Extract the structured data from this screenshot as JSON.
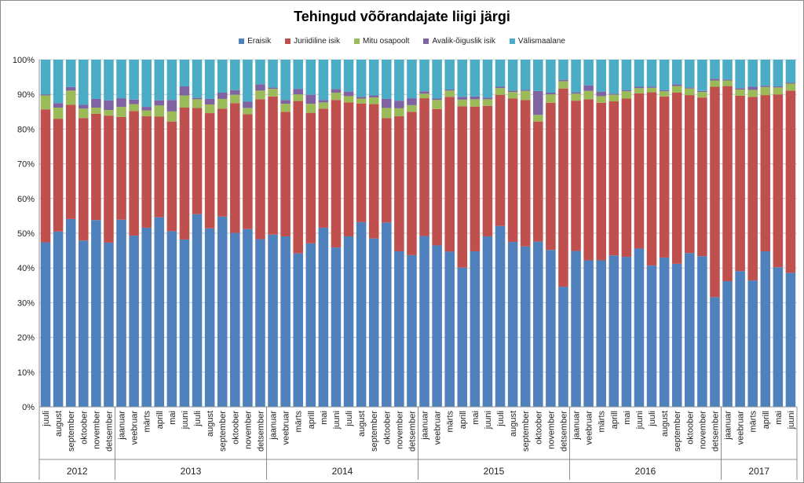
{
  "chart_data": {
    "type": "bar",
    "stacked": "100%",
    "title": "Tehingud võõrandajate liigi järgi",
    "legend_position": "top",
    "grid": true,
    "ylim": [
      0,
      100
    ],
    "y_ticks": [
      "0%",
      "10%",
      "20%",
      "30%",
      "40%",
      "50%",
      "60%",
      "70%",
      "80%",
      "90%",
      "100%"
    ],
    "colors": [
      "#4F81BD",
      "#C0504D",
      "#9BBB59",
      "#8064A2",
      "#4BACC6"
    ],
    "categories": [
      "juuli",
      "august",
      "september",
      "oktoober",
      "november",
      "detsember",
      "jaanuar",
      "veebruar",
      "märts",
      "aprill",
      "mai",
      "juuni",
      "juuli",
      "august",
      "september",
      "oktoober",
      "november",
      "detsember",
      "jaanuar",
      "veebruar",
      "märts",
      "aprill",
      "mai",
      "juuni",
      "juuli",
      "august",
      "september",
      "oktoober",
      "november",
      "detsember",
      "jaanuar",
      "veebruar",
      "märts",
      "aprill",
      "mai",
      "juuni",
      "juuli",
      "august",
      "september",
      "oktoober",
      "november",
      "detsember",
      "jaanuar",
      "veebruar",
      "märts",
      "aprill",
      "mai",
      "juuni",
      "juuli",
      "august",
      "september",
      "oktoober",
      "november",
      "detsember",
      "jaanuar",
      "veebruar",
      "märts",
      "aprill",
      "mai",
      "juuni"
    ],
    "years": [
      {
        "label": "2012",
        "count": 6
      },
      {
        "label": "2013",
        "count": 12
      },
      {
        "label": "2014",
        "count": 12
      },
      {
        "label": "2015",
        "count": 12
      },
      {
        "label": "2016",
        "count": 12
      },
      {
        "label": "2017",
        "count": 6
      }
    ],
    "series": [
      {
        "name": "Eraisik",
        "values": [
          47.4,
          50.5,
          54.1,
          47.9,
          53.8,
          47.3,
          53.9,
          49.3,
          51.6,
          54.6,
          50.6,
          48.2,
          55.5,
          51.4,
          54.8,
          50.1,
          51.2,
          48.3,
          49.6,
          49.1,
          44.2,
          47.1,
          51.6,
          45.9,
          49.1,
          53.2,
          48.5,
          53.1,
          44.8,
          43.7,
          49.2,
          46.5,
          44.7,
          40.1,
          44.8,
          49.1,
          52.1,
          47.5,
          46.2,
          47.6,
          45.2,
          34.6,
          44.9,
          42.2,
          42.2,
          43.6,
          43.2,
          45.6,
          40.7,
          43.0,
          41.2,
          44.3,
          43.4,
          31.6,
          36.2,
          39.1,
          36.4,
          44.8,
          40.2,
          38.6
        ]
      },
      {
        "name": "Juriidiline isik",
        "values": [
          38.3,
          32.5,
          32.9,
          35.3,
          30.6,
          36.6,
          29.6,
          35.9,
          32.1,
          29.0,
          31.6,
          38.0,
          30.6,
          33.2,
          31.1,
          37.4,
          33.1,
          40.3,
          39.8,
          35.9,
          43.9,
          37.6,
          34.3,
          42.5,
          38.6,
          34.2,
          38.7,
          30.1,
          38.9,
          41.3,
          39.7,
          39.3,
          44.6,
          46.5,
          41.7,
          37.6,
          37.8,
          41.3,
          42.2,
          34.6,
          42.4,
          57.1,
          43.3,
          46.4,
          45.4,
          44.4,
          45.6,
          44.7,
          49.9,
          46.4,
          49.3,
          45.5,
          45.7,
          60.6,
          56.2,
          50.5,
          52.9,
          45.0,
          49.8,
          52.5
        ]
      },
      {
        "name": "Mitu osapoolt",
        "values": [
          4.0,
          3.2,
          4.1,
          2.7,
          1.8,
          1.6,
          2.9,
          2.0,
          1.7,
          3.2,
          2.9,
          3.5,
          2.5,
          2.5,
          2.8,
          2.4,
          1.8,
          2.5,
          2.2,
          2.3,
          1.9,
          2.6,
          1.8,
          2.1,
          1.8,
          1.4,
          1.9,
          2.9,
          2.3,
          1.9,
          1.3,
          2.6,
          1.8,
          1.9,
          2.1,
          1.9,
          1.9,
          1.9,
          2.6,
          1.9,
          2.4,
          2.1,
          2.0,
          2.4,
          1.9,
          1.9,
          2.1,
          1.5,
          1.3,
          1.5,
          1.9,
          1.9,
          1.6,
          1.8,
          1.6,
          1.8,
          2.0,
          2.3,
          2.0,
          2.0
        ]
      },
      {
        "name": "Avalik-õiguslik isik",
        "values": [
          0.3,
          1.3,
          1.0,
          1.1,
          2.5,
          2.8,
          2.5,
          1.3,
          1.0,
          1.5,
          3.3,
          2.6,
          0.4,
          1.6,
          1.8,
          1.3,
          1.8,
          1.8,
          0.4,
          1.1,
          1.6,
          2.6,
          0.7,
          1.0,
          1.3,
          0.5,
          0.6,
          2.6,
          2.2,
          2.0,
          0.7,
          0.4,
          0.3,
          0.8,
          0.8,
          0.5,
          0.4,
          0.4,
          0.3,
          6.9,
          0.5,
          0.4,
          0.4,
          1.6,
          1.3,
          0.3,
          0.3,
          0.4,
          0.3,
          0.3,
          0.5,
          0.3,
          0.3,
          0.5,
          0.3,
          0.4,
          0.9,
          0.4,
          0.3,
          0.3
        ]
      },
      {
        "name": "Välismaalane",
        "values": [
          10.0,
          12.5,
          7.9,
          13.0,
          11.3,
          11.7,
          11.1,
          11.5,
          13.6,
          11.7,
          11.6,
          7.7,
          11.0,
          11.3,
          9.5,
          8.8,
          12.1,
          7.1,
          8.0,
          11.6,
          8.4,
          10.1,
          11.6,
          8.5,
          9.2,
          10.7,
          10.3,
          11.3,
          11.8,
          11.1,
          9.1,
          11.2,
          8.6,
          10.7,
          10.6,
          10.9,
          7.8,
          8.9,
          8.7,
          9.0,
          9.5,
          5.8,
          9.4,
          7.4,
          9.2,
          9.8,
          8.8,
          7.8,
          7.8,
          8.8,
          7.1,
          8.0,
          9.0,
          5.5,
          5.7,
          8.2,
          7.8,
          7.5,
          7.7,
          6.6
        ]
      }
    ]
  }
}
